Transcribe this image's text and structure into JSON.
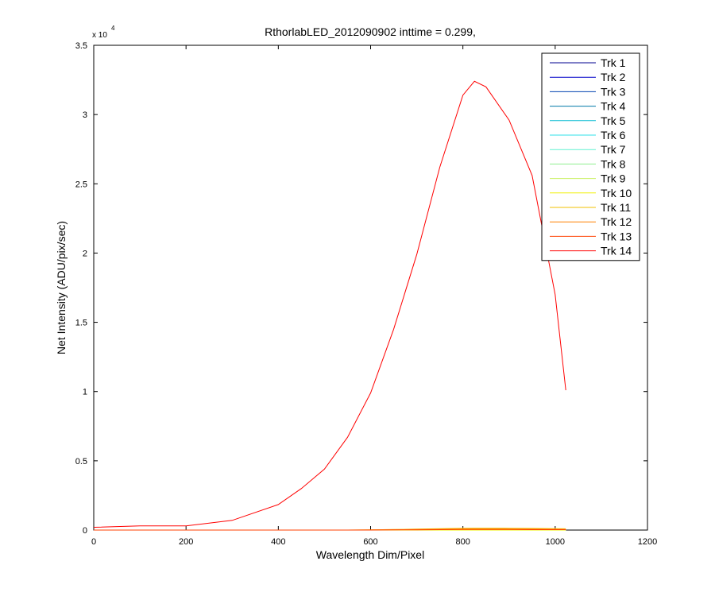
{
  "chart_data": {
    "type": "line",
    "title": "RthorlabLED_2012090902 inttime = 0.299,",
    "x_label": "Wavelength Dim/Pixel",
    "y_label": "Net Intensity (ADU/pix/sec)",
    "y_multiplier": "x 10",
    "y_multiplier_exp": "4",
    "x": [
      0,
      100,
      200,
      300,
      400,
      450,
      500,
      550,
      600,
      650,
      700,
      750,
      800,
      825,
      850,
      900,
      950,
      1000,
      1023
    ],
    "xlim": [
      0,
      1200
    ],
    "xticks": [
      0,
      200,
      400,
      600,
      800,
      1000,
      1200
    ],
    "ylim": [
      0,
      35000
    ],
    "yticks": [
      0,
      {
        "value": 5000,
        "label": "0.5"
      },
      {
        "value": 10000,
        "label": "1"
      },
      {
        "value": 15000,
        "label": "1.5"
      },
      {
        "value": 20000,
        "label": "2"
      },
      {
        "value": 25000,
        "label": "2.5"
      },
      {
        "value": 30000,
        "label": "3"
      },
      {
        "value": 35000,
        "label": "3.5"
      }
    ],
    "grid": false,
    "legend": "upper right",
    "series": [
      {
        "name": "Trk 1",
        "color": "#00008f",
        "values": [
          0,
          0,
          0,
          0,
          0,
          0,
          0,
          0,
          0,
          0,
          0,
          0,
          0,
          0,
          0,
          0,
          0,
          0,
          0
        ]
      },
      {
        "name": "Trk 2",
        "color": "#0000c8",
        "values": [
          0,
          0,
          0,
          0,
          0,
          0,
          0,
          0,
          0,
          0,
          0,
          0,
          0,
          0,
          0,
          0,
          0,
          0,
          0
        ]
      },
      {
        "name": "Trk 3",
        "color": "#0040b0",
        "values": [
          0,
          0,
          0,
          0,
          0,
          0,
          0,
          0,
          0,
          0,
          0,
          0,
          0,
          0,
          0,
          0,
          0,
          0,
          0
        ]
      },
      {
        "name": "Trk 4",
        "color": "#0078a8",
        "values": [
          0,
          0,
          0,
          0,
          0,
          0,
          0,
          0,
          0,
          0,
          0,
          0,
          0,
          0,
          0,
          0,
          0,
          0,
          0
        ]
      },
      {
        "name": "Trk 5",
        "color": "#00b8d0",
        "values": [
          0,
          0,
          0,
          0,
          0,
          0,
          0,
          0,
          0,
          0,
          0,
          0,
          0,
          0,
          0,
          0,
          0,
          0,
          0
        ]
      },
      {
        "name": "Trk 6",
        "color": "#30e0e8",
        "values": [
          0,
          0,
          0,
          0,
          0,
          0,
          0,
          0,
          0,
          0,
          0,
          0,
          0,
          0,
          0,
          0,
          0,
          0,
          0
        ]
      },
      {
        "name": "Trk 7",
        "color": "#60f0d0",
        "values": [
          0,
          0,
          0,
          0,
          0,
          0,
          0,
          0,
          0,
          0,
          0,
          0,
          0,
          0,
          0,
          0,
          0,
          0,
          0
        ]
      },
      {
        "name": "Trk 8",
        "color": "#90f090",
        "values": [
          0,
          0,
          0,
          0,
          0,
          0,
          0,
          0,
          0,
          0,
          0,
          0,
          0,
          0,
          0,
          0,
          0,
          0,
          0
        ]
      },
      {
        "name": "Trk 9",
        "color": "#c8f060",
        "values": [
          0,
          0,
          0,
          0,
          0,
          0,
          0,
          0,
          0,
          0,
          0,
          0,
          0,
          0,
          0,
          0,
          0,
          0,
          0
        ]
      },
      {
        "name": "Trk 10",
        "color": "#f0f000",
        "values": [
          0,
          0,
          0,
          0,
          0,
          0,
          0,
          0,
          0,
          0,
          0,
          0,
          0,
          0,
          0,
          0,
          0,
          0,
          0
        ]
      },
      {
        "name": "Trk 11",
        "color": "#f0c000",
        "values": [
          0,
          0,
          0,
          0,
          0,
          0,
          0,
          0,
          20,
          40,
          70,
          100,
          130,
          140,
          140,
          130,
          120,
          100,
          90
        ]
      },
      {
        "name": "Trk 12",
        "color": "#ff8000",
        "values": [
          0,
          0,
          0,
          0,
          0,
          0,
          0,
          0,
          10,
          20,
          40,
          60,
          80,
          80,
          80,
          80,
          70,
          60,
          50
        ]
      },
      {
        "name": "Trk 13",
        "color": "#ff4000",
        "values": [
          0,
          0,
          0,
          0,
          0,
          0,
          0,
          0,
          0,
          10,
          20,
          30,
          40,
          40,
          40,
          40,
          30,
          30,
          30
        ]
      },
      {
        "name": "Trk 14",
        "color": "#ff0000",
        "values": [
          200,
          300,
          300,
          700,
          1840,
          3000,
          4400,
          6700,
          9900,
          14500,
          19900,
          26200,
          31400,
          32400,
          32000,
          29600,
          25600,
          17000,
          10100
        ]
      }
    ]
  }
}
